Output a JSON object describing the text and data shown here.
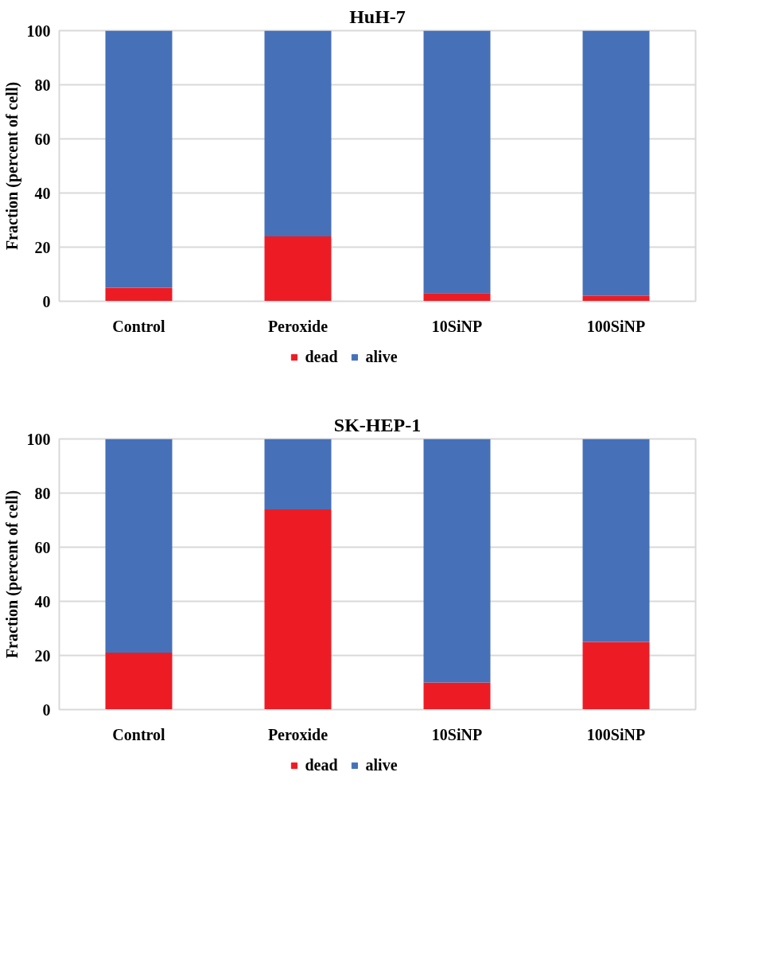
{
  "chart_data": [
    {
      "type": "bar",
      "title": "HuH-7",
      "ylabel": "Fraction (percent of cell)",
      "categories": [
        "Control",
        "Peroxide",
        "10SiNP",
        "100SiNP"
      ],
      "stacked": true,
      "ylim": [
        0,
        100
      ],
      "yticks": [
        0,
        20,
        40,
        60,
        80,
        100
      ],
      "grid": "y",
      "legend": "bottom",
      "series": [
        {
          "name": "dead",
          "color": "#ed1c24",
          "values": [
            5,
            24,
            3,
            2
          ]
        },
        {
          "name": "alive",
          "color": "#4671b8",
          "values": [
            95,
            76,
            97,
            98
          ]
        }
      ]
    },
    {
      "type": "bar",
      "title": "SK-HEP-1",
      "ylabel": "Fraction (percent of cell)",
      "categories": [
        "Control",
        "Peroxide",
        "10SiNP",
        "100SiNP"
      ],
      "stacked": true,
      "ylim": [
        0,
        100
      ],
      "yticks": [
        0,
        20,
        40,
        60,
        80,
        100
      ],
      "grid": "y",
      "legend": "bottom",
      "series": [
        {
          "name": "dead",
          "color": "#ed1c24",
          "values": [
            21,
            74,
            10,
            25
          ]
        },
        {
          "name": "alive",
          "color": "#4671b8",
          "values": [
            79,
            26,
            90,
            75
          ]
        }
      ]
    }
  ]
}
